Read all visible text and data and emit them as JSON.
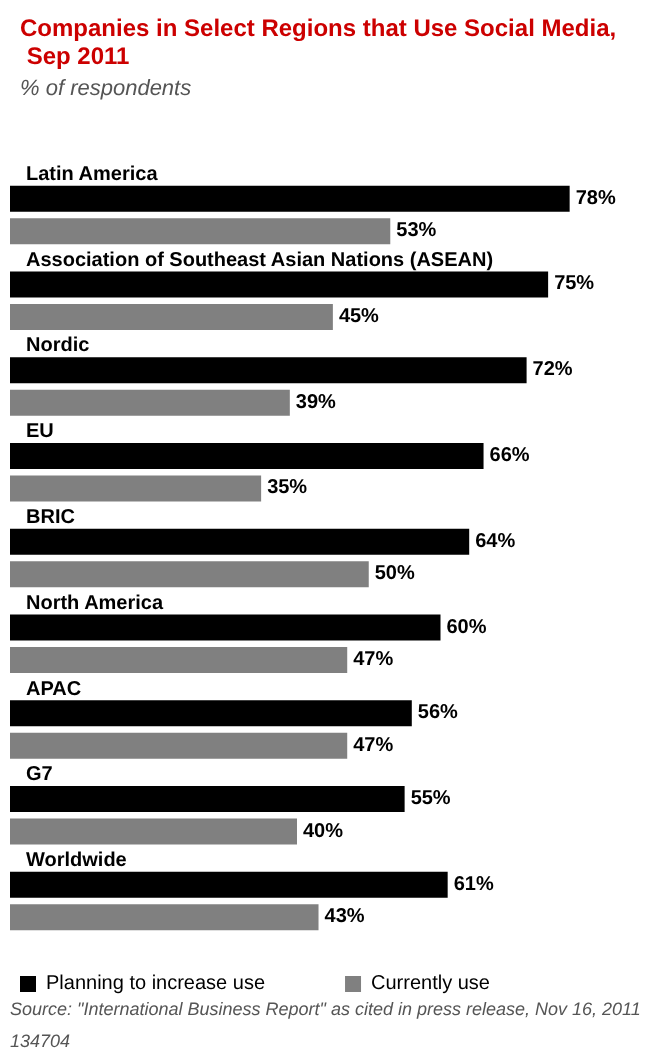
{
  "chart_data": {
    "type": "bar",
    "orientation": "horizontal",
    "title": "Companies in Select Regions that Use Social Media, Sep 2011",
    "subtitle": "% of respondents",
    "categories": [
      "Latin America",
      "Association of Southeast Asian Nations (ASEAN)",
      "Nordic",
      "EU",
      "BRIC",
      "North America",
      "APAC",
      "G7",
      "Worldwide"
    ],
    "series": [
      {
        "name": "Planning to increase use",
        "color": "#000000",
        "values": [
          78,
          75,
          72,
          66,
          64,
          60,
          56,
          55,
          61
        ],
        "value_labels": [
          "78%",
          "75%",
          "72%",
          "66%",
          "64%",
          "60%",
          "56%",
          "55%",
          "61%"
        ]
      },
      {
        "name": "Currently use",
        "color": "#808080",
        "values": [
          53,
          45,
          39,
          35,
          50,
          47,
          47,
          40,
          43
        ],
        "value_labels": [
          "53%",
          "45%",
          "39%",
          "35%",
          "50%",
          "47%",
          "47%",
          "40%",
          "43%"
        ]
      }
    ],
    "legend": "bottom left",
    "annotations": [
      "Source: \"International Business Report\" as cited in press release, Nov 16, 2011",
      "134704"
    ]
  }
}
